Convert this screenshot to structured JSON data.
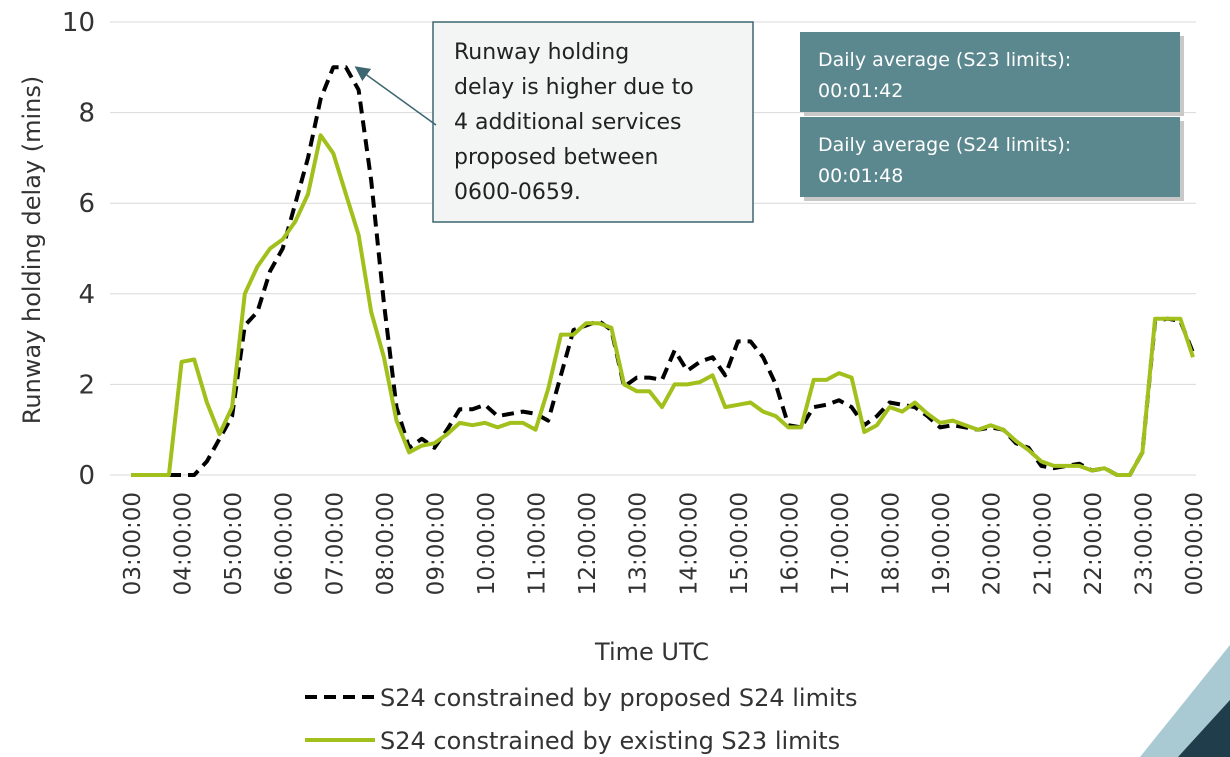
{
  "chart_data": {
    "type": "line",
    "y_label": "Runway holding delay (mins)",
    "x_label": "Time UTC",
    "categories": [
      "03:00:00",
      null,
      null,
      null,
      "04:00:00",
      null,
      null,
      null,
      "05:00:00",
      null,
      null,
      null,
      "06:00:00",
      null,
      null,
      null,
      "07:00:00",
      null,
      null,
      null,
      "08:00:00",
      null,
      null,
      null,
      "09:00:00",
      null,
      null,
      null,
      "10:00:00",
      null,
      null,
      null,
      "11:00:00",
      null,
      null,
      null,
      "12:00:00",
      null,
      null,
      null,
      "13:00:00",
      null,
      null,
      null,
      "14:00:00",
      null,
      null,
      null,
      "15:00:00",
      null,
      null,
      null,
      "16:00:00",
      null,
      null,
      null,
      "17:00:00",
      null,
      null,
      null,
      "18:00:00",
      null,
      null,
      null,
      "19:00:00",
      null,
      null,
      null,
      "20:00:00",
      null,
      null,
      null,
      "21:00:00",
      null,
      null,
      null,
      "22:00:00",
      null,
      null,
      null,
      "23:00:00",
      null,
      null,
      null,
      "00:00:00"
    ],
    "series": [
      {
        "name": "S24 constrained by proposed S24 limits",
        "color": "#000000",
        "dashed": true,
        "values": [
          0,
          0,
          0,
          0,
          0,
          0,
          0.3,
          0.8,
          1.3,
          3.3,
          3.6,
          4.5,
          5.0,
          6.0,
          7.0,
          8.3,
          9.0,
          9.0,
          8.5,
          6.5,
          3.8,
          1.5,
          0.6,
          0.8,
          0.6,
          1.0,
          1.45,
          1.45,
          1.55,
          1.3,
          1.35,
          1.4,
          1.35,
          1.2,
          2.2,
          3.2,
          3.3,
          3.4,
          3.2,
          1.95,
          2.15,
          2.15,
          2.1,
          2.75,
          2.3,
          2.5,
          2.6,
          2.2,
          2.95,
          2.95,
          2.6,
          2.0,
          1.1,
          1.05,
          1.5,
          1.55,
          1.65,
          1.5,
          1.1,
          1.3,
          1.6,
          1.55,
          1.5,
          1.3,
          1.05,
          1.1,
          1.05,
          1.0,
          1.05,
          1.0,
          0.7,
          0.6,
          0.2,
          0.15,
          0.2,
          0.25,
          0.1,
          0.15,
          0,
          0,
          0.5,
          3.4,
          3.45,
          3.4,
          2.7
        ]
      },
      {
        "name": "S24 constrained by existing S23 limits",
        "color": "#a2c01b",
        "dashed": false,
        "values": [
          0,
          0,
          0,
          0,
          2.5,
          2.55,
          1.6,
          0.9,
          1.5,
          4.0,
          4.6,
          5.0,
          5.2,
          5.6,
          6.2,
          7.5,
          7.1,
          6.2,
          5.3,
          3.6,
          2.6,
          1.2,
          0.5,
          0.65,
          0.7,
          0.9,
          1.15,
          1.1,
          1.15,
          1.05,
          1.15,
          1.15,
          1.0,
          1.9,
          3.1,
          3.1,
          3.35,
          3.35,
          3.25,
          2.0,
          1.85,
          1.85,
          1.5,
          2.0,
          2.0,
          2.05,
          2.2,
          1.5,
          1.55,
          1.6,
          1.4,
          1.3,
          1.05,
          1.05,
          2.1,
          2.1,
          2.25,
          2.15,
          0.95,
          1.1,
          1.5,
          1.4,
          1.6,
          1.35,
          1.15,
          1.2,
          1.1,
          1.0,
          1.1,
          1.0,
          0.75,
          0.55,
          0.3,
          0.2,
          0.2,
          0.2,
          0.1,
          0.15,
          0,
          0,
          0.5,
          3.45,
          3.45,
          3.45,
          2.6
        ]
      }
    ],
    "ylim": [
      0,
      10
    ],
    "yticks": [
      0,
      2,
      4,
      6,
      8,
      10
    ],
    "grid": true,
    "legend": "bottom",
    "annotation": [
      "Runway holding",
      "delay is higher due to",
      "4 additional services",
      "proposed between",
      "0600-0659."
    ],
    "info_boxes": [
      [
        "Daily average (S23 limits):",
        "00:01:42"
      ],
      [
        "Daily average (S24 limits):",
        "00:01:48"
      ]
    ]
  }
}
